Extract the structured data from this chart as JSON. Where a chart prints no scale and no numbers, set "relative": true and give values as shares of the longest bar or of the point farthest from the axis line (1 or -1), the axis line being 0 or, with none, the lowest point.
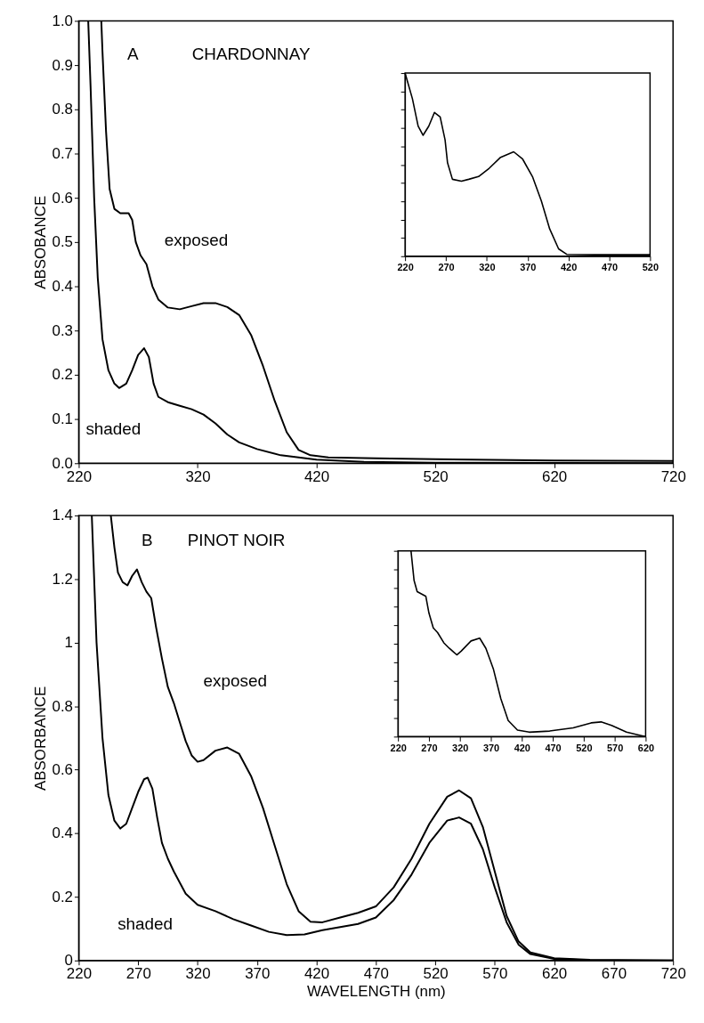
{
  "chart_data": [
    {
      "type": "line",
      "ylabel": "ABSOBANCE",
      "annotations": [
        "A",
        "CHARDONNAY"
      ],
      "xlim": [
        220,
        720
      ],
      "xticks": [
        220,
        320,
        420,
        520,
        620,
        720
      ],
      "ylim": [
        0,
        1
      ],
      "yticks": [
        {
          "value": 0,
          "label": "0.0"
        },
        {
          "value": 0.1,
          "label": "0.1"
        },
        {
          "value": 0.2,
          "label": "0.2"
        },
        {
          "value": 0.3,
          "label": "0.3"
        },
        {
          "value": 0.4,
          "label": "0.4"
        },
        {
          "value": 0.5,
          "label": "0.5"
        },
        {
          "value": 0.6,
          "label": "0.6"
        },
        {
          "value": 0.7,
          "label": "0.7"
        },
        {
          "value": 0.8,
          "label": "0.8"
        },
        {
          "value": 0.9,
          "label": "0.9"
        },
        {
          "value": 1,
          "label": "1.0"
        }
      ],
      "grid": false,
      "series": [
        {
          "name": "exposed",
          "color": "#000000",
          "x": [
            239,
            240,
            243,
            246,
            250,
            255,
            262,
            265,
            268,
            272,
            277,
            282,
            287,
            295,
            305,
            315,
            325,
            335,
            345,
            355,
            365,
            375,
            385,
            395,
            405,
            415,
            430,
            470,
            520,
            620,
            720
          ],
          "values": [
            1.0,
            0.93,
            0.75,
            0.62,
            0.575,
            0.565,
            0.565,
            0.55,
            0.5,
            0.47,
            0.45,
            0.4,
            0.37,
            0.352,
            0.348,
            0.355,
            0.362,
            0.362,
            0.353,
            0.335,
            0.29,
            0.22,
            0.14,
            0.07,
            0.03,
            0.018,
            0.013,
            0.011,
            0.009,
            0.006,
            0.005
          ]
        },
        {
          "name": "shaded",
          "color": "#000000",
          "x": [
            228,
            230,
            233,
            236,
            240,
            245,
            250,
            254,
            260,
            265,
            270,
            275,
            279,
            283,
            287,
            295,
            305,
            315,
            325,
            335,
            345,
            355,
            370,
            390,
            420,
            460,
            520,
            720
          ],
          "values": [
            1.0,
            0.85,
            0.6,
            0.42,
            0.28,
            0.21,
            0.18,
            0.17,
            0.18,
            0.21,
            0.245,
            0.26,
            0.24,
            0.18,
            0.15,
            0.138,
            0.13,
            0.122,
            0.11,
            0.09,
            0.065,
            0.047,
            0.032,
            0.018,
            0.008,
            0.003,
            0.001,
            0.0
          ]
        }
      ]
    },
    {
      "type": "line",
      "relative": true,
      "tick_labels": "x",
      "xlim": [
        220,
        520
      ],
      "xticks": [
        220,
        270,
        320,
        370,
        420,
        470,
        520
      ],
      "series": [
        {
          "color": "#000000",
          "x": [
            220,
            229,
            236,
            242,
            249,
            256,
            263,
            269,
            272,
            278,
            289,
            298,
            310,
            323,
            337,
            353,
            364,
            376,
            387,
            397,
            408,
            418,
            453,
            520
          ],
          "values": [
            1.0,
            0.86,
            0.71,
            0.66,
            0.71,
            0.785,
            0.76,
            0.635,
            0.51,
            0.42,
            0.41,
            0.42,
            0.435,
            0.48,
            0.54,
            0.57,
            0.53,
            0.435,
            0.3,
            0.15,
            0.04,
            0.01,
            0.008,
            0.008
          ]
        }
      ]
    },
    {
      "type": "line",
      "xlabel": "WAVELENGTH (nm)",
      "ylabel": "ABSORBANCE",
      "annotations": [
        "B",
        "PINOT NOIR"
      ],
      "xlim": [
        220,
        720
      ],
      "xticks": [
        220,
        270,
        320,
        370,
        420,
        470,
        520,
        570,
        620,
        670,
        720
      ],
      "ylim": [
        0,
        1.4
      ],
      "yticks": [
        0,
        0.2,
        0.4,
        0.6,
        0.8,
        1,
        1.2,
        1.4
      ],
      "grid": false,
      "series": [
        {
          "name": "exposed",
          "color": "#000000",
          "x": [
            247,
            250,
            253,
            257,
            261,
            265,
            269,
            273,
            277,
            281,
            285,
            290,
            295,
            300,
            305,
            310,
            315,
            320,
            325,
            335,
            345,
            355,
            365,
            375,
            385,
            395,
            405,
            415,
            425,
            440,
            455,
            470,
            485,
            500,
            515,
            530,
            540,
            550,
            560,
            570,
            580,
            590,
            600,
            620,
            650,
            720
          ],
          "values": [
            1.4,
            1.3,
            1.22,
            1.19,
            1.18,
            1.21,
            1.23,
            1.19,
            1.16,
            1.14,
            1.05,
            0.95,
            0.86,
            0.81,
            0.75,
            0.69,
            0.645,
            0.625,
            0.63,
            0.66,
            0.67,
            0.65,
            0.58,
            0.48,
            0.36,
            0.24,
            0.155,
            0.122,
            0.12,
            0.135,
            0.15,
            0.17,
            0.23,
            0.32,
            0.43,
            0.515,
            0.535,
            0.51,
            0.42,
            0.28,
            0.14,
            0.06,
            0.025,
            0.007,
            0.002,
            0.0
          ]
        },
        {
          "name": "shaded",
          "color": "#000000",
          "x": [
            231,
            235,
            240,
            245,
            250,
            255,
            260,
            265,
            270,
            275,
            278,
            282,
            286,
            290,
            295,
            300,
            310,
            320,
            335,
            350,
            365,
            380,
            395,
            410,
            425,
            440,
            455,
            470,
            485,
            500,
            515,
            530,
            540,
            550,
            560,
            570,
            580,
            590,
            600,
            620,
            650,
            720
          ],
          "values": [
            1.4,
            1.0,
            0.7,
            0.52,
            0.44,
            0.415,
            0.43,
            0.48,
            0.53,
            0.57,
            0.575,
            0.54,
            0.45,
            0.37,
            0.32,
            0.28,
            0.21,
            0.175,
            0.155,
            0.13,
            0.11,
            0.09,
            0.08,
            0.082,
            0.095,
            0.105,
            0.115,
            0.135,
            0.19,
            0.27,
            0.37,
            0.44,
            0.45,
            0.43,
            0.35,
            0.23,
            0.12,
            0.05,
            0.02,
            0.005,
            0.001,
            0.0
          ]
        }
      ]
    },
    {
      "type": "line",
      "relative": true,
      "tick_labels": "x",
      "xlim": [
        220,
        620
      ],
      "xticks": [
        220,
        270,
        320,
        370,
        420,
        470,
        520,
        570,
        620
      ],
      "series": [
        {
          "color": "#000000",
          "x": [
            241,
            246,
            251,
            265,
            270,
            277,
            284,
            294,
            303,
            315,
            322,
            338,
            352,
            362,
            374,
            386,
            398,
            413,
            432,
            465,
            503,
            532,
            548,
            565,
            589,
            613,
            620
          ],
          "values": [
            1.0,
            0.84,
            0.78,
            0.755,
            0.665,
            0.585,
            0.56,
            0.505,
            0.475,
            0.44,
            0.46,
            0.515,
            0.53,
            0.475,
            0.365,
            0.205,
            0.087,
            0.035,
            0.024,
            0.03,
            0.047,
            0.074,
            0.079,
            0.06,
            0.024,
            0.005,
            0.0
          ]
        }
      ]
    }
  ]
}
